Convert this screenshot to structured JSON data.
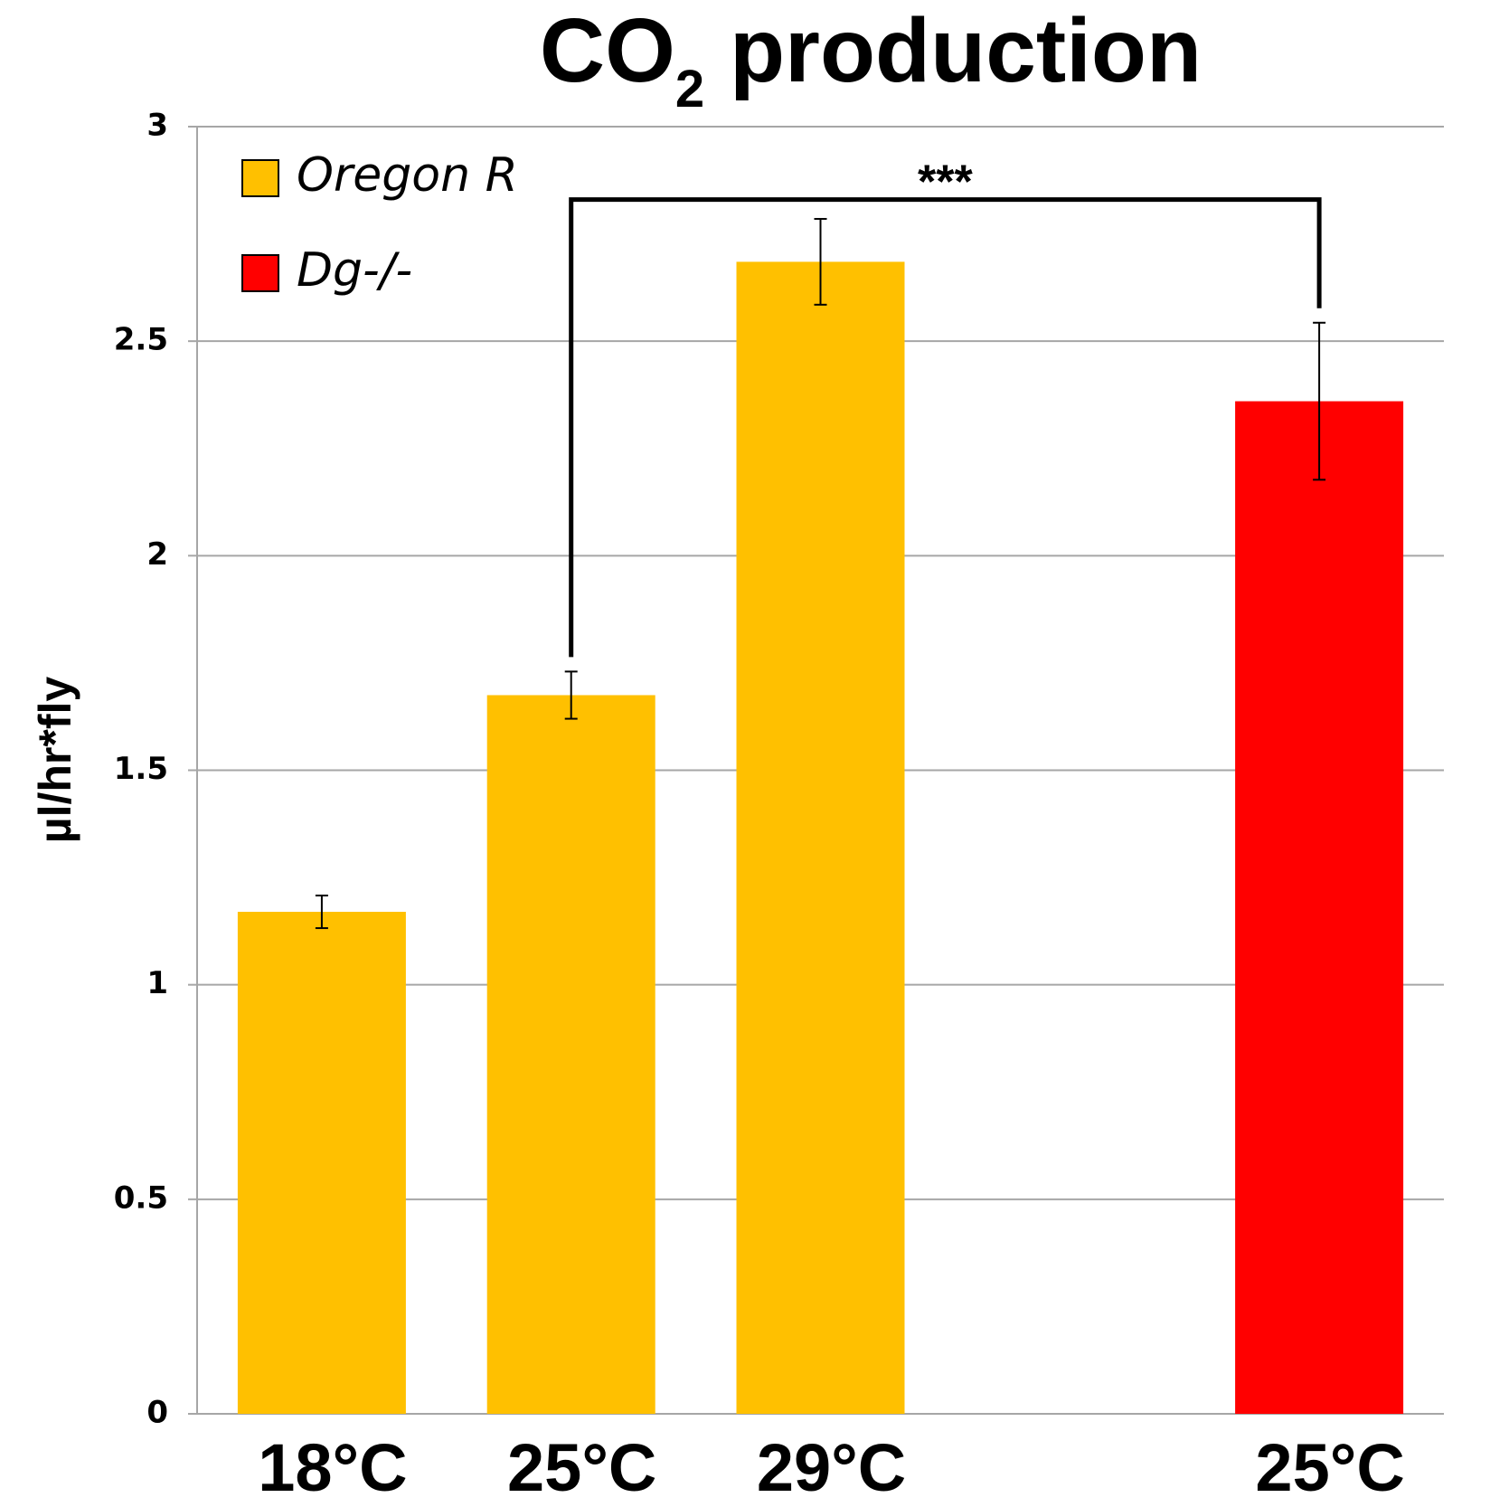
{
  "chart_data": {
    "type": "bar",
    "title": "CO",
    "title_subscript": "2",
    "title_suffix": " production",
    "ylabel": "µl/hr*fly",
    "xlabel": "",
    "ylim": [
      0,
      3
    ],
    "yticks": [
      0,
      0.5,
      1,
      1.5,
      2,
      2.5,
      3
    ],
    "ytick_labels": [
      "0",
      "0.5",
      "1",
      "1.5",
      "2",
      "2.5",
      "3"
    ],
    "grid": true,
    "categories": [
      "18°C",
      "25°C",
      "29°C",
      "25°C"
    ],
    "slots": [
      0,
      1,
      2,
      4
    ],
    "values": [
      1.17,
      1.675,
      2.685,
      2.36
    ],
    "errors": [
      0.038,
      0.055,
      0.1,
      0.183
    ],
    "series_of_bar": [
      "Oregon R",
      "Oregon R",
      "Oregon R",
      "Dg-/-"
    ],
    "series": [
      {
        "name": "Oregon R",
        "color": "#FFC000"
      },
      {
        "name": "Dg-/-",
        "color": "#FF0000"
      }
    ],
    "legend_position": "top-left",
    "significance": {
      "label": "***",
      "from_bar": 1,
      "to_bar": 3,
      "level": 2.83
    }
  }
}
